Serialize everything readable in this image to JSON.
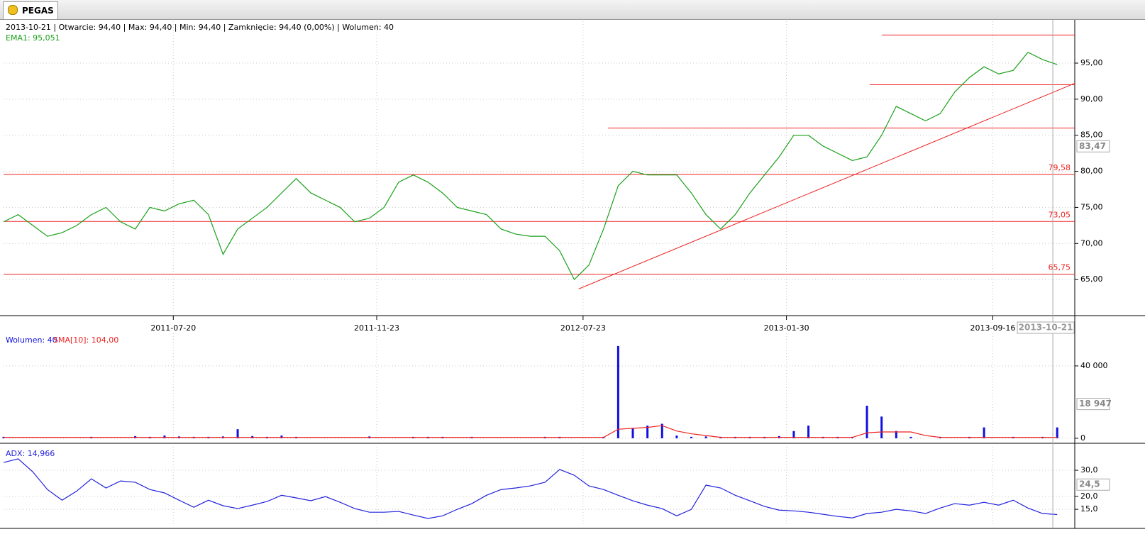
{
  "tab": "PEGAS",
  "chart_data": [
    {
      "type": "line",
      "header": "2013-10-21 | Otwarcie: 94,40 | Max: 94,40 | Min: 94,40 | Zamknięcie: 94,40 (0,00%)  | Wolumen: 40",
      "series": [
        {
          "name": "EMA1: 95,051",
          "color": "#1aa01a",
          "values": [
            73,
            74,
            72.5,
            71,
            71.5,
            72.5,
            74,
            75,
            73,
            72,
            75,
            74.5,
            75.5,
            76,
            74,
            68.5,
            72,
            73.5,
            75,
            77,
            79,
            77,
            76,
            75,
            73,
            73.5,
            75,
            78.5,
            79.5,
            78.5,
            77,
            75,
            74.5,
            74,
            72,
            71.3,
            71,
            71,
            69,
            65,
            67,
            72,
            78,
            80,
            79.5,
            79.5,
            79.5,
            77,
            74,
            72,
            74,
            77,
            79.5,
            82,
            85,
            85,
            83.5,
            82.5,
            81.5,
            82,
            85,
            89,
            88,
            87,
            88,
            91,
            93,
            94.5,
            93.5,
            94,
            96.5,
            95.5,
            94.8
          ]
        }
      ],
      "xlim": [
        0,
        73.2
      ],
      "xticks": [
        {
          "value": 11.6,
          "label": "2011-07-20"
        },
        {
          "value": 25.5,
          "label": "2011-11-23"
        },
        {
          "value": 39.6,
          "label": "2012-07-23"
        },
        {
          "value": 53.5,
          "label": "2013-01-30"
        },
        {
          "value": 67.6,
          "label": "2013-09-16"
        }
      ],
      "ylim": [
        60,
        100.8
      ],
      "yticks": [
        {
          "value": 65,
          "label": "65,00"
        },
        {
          "value": 70,
          "label": "70,00"
        },
        {
          "value": 75,
          "label": "75,00"
        },
        {
          "value": 80,
          "label": "80,00"
        },
        {
          "value": 85,
          "label": "85,00"
        },
        {
          "value": 90,
          "label": "90,00"
        },
        {
          "value": 95,
          "label": "95,00"
        }
      ],
      "levels": [
        98.9,
        92,
        86,
        {
          "value": 79.58,
          "label": "79,58"
        },
        {
          "value": 73.05,
          "label": "73,05"
        },
        {
          "value": 65.75,
          "label": "65,75"
        }
      ],
      "level_color": "#ee2222",
      "trendline": {
        "x": [
          39.3,
          73.2
        ],
        "y": [
          63.7,
          92.2
        ]
      },
      "cursor": {
        "x": 71.7,
        "x_label": "2013-10-21",
        "value": 83.47,
        "label": "83,47"
      },
      "grid": true
    },
    {
      "type": "bar",
      "series": [
        {
          "name": "Wolumen: 40",
          "color": "#1010e0",
          "values": [
            800,
            0,
            0,
            0,
            0,
            0,
            800,
            0,
            0,
            1200,
            800,
            1500,
            1000,
            800,
            800,
            1000,
            5000,
            1200,
            800,
            1500,
            800,
            0,
            0,
            0,
            0,
            1000,
            0,
            0,
            800,
            800,
            800,
            0,
            800,
            0,
            0,
            0,
            0,
            800,
            800,
            0,
            0,
            800,
            51000,
            5500,
            7000,
            8000,
            1500,
            800,
            1000,
            800,
            800,
            800,
            800,
            1200,
            4000,
            7000,
            800,
            800,
            800,
            18000,
            12000,
            4000,
            800,
            0,
            800,
            0,
            800,
            6000,
            0,
            800,
            0,
            800,
            6000
          ]
        },
        {
          "name": "SMA[10]: 104,00",
          "color": "#ee2222",
          "values": [
            500,
            500,
            500,
            500,
            500,
            500,
            500,
            500,
            500,
            500,
            500,
            500,
            500,
            500,
            500,
            500,
            500,
            500,
            500,
            500,
            500,
            500,
            500,
            500,
            500,
            500,
            500,
            500,
            500,
            500,
            500,
            500,
            500,
            500,
            500,
            500,
            500,
            500,
            500,
            500,
            500,
            500,
            5000,
            5500,
            6000,
            7000,
            4000,
            2500,
            1500,
            500,
            500,
            500,
            500,
            500,
            500,
            500,
            500,
            500,
            500,
            3000,
            3500,
            3500,
            3500,
            1500,
            500,
            500,
            500,
            500,
            500,
            500,
            500,
            500,
            500
          ]
        }
      ],
      "ylim": [
        -1600,
        58000
      ],
      "yticks": [
        0,
        {
          "value": 40000,
          "label": "40 000"
        }
      ],
      "cursor": {
        "value": 18947,
        "label": "18 947"
      }
    },
    {
      "type": "line",
      "series": [
        {
          "name": "ADX: 14,966",
          "color": "#2222dd",
          "values": [
            33,
            34.4,
            29.4,
            22.6,
            18.5,
            22,
            26.7,
            23.2,
            25.9,
            25.4,
            22.6,
            21.3,
            18.5,
            15.8,
            18.5,
            16.4,
            15.3,
            16.6,
            18,
            20.4,
            19.4,
            18.3,
            19.9,
            17.7,
            15.3,
            13.9,
            13.9,
            14.2,
            12.8,
            11.5,
            12.5,
            15,
            17.2,
            20.4,
            22.6,
            23.2,
            24,
            25.4,
            30.3,
            28.1,
            24,
            22.6,
            20.4,
            18.3,
            16.6,
            15.3,
            12.5,
            15,
            24.3,
            23.2,
            20.4,
            18.3,
            16.1,
            14.7,
            14.4,
            13.9,
            13.1,
            12.3,
            11.7,
            13.4,
            13.9,
            15,
            14.4,
            13.4,
            15.5,
            17.2,
            16.6,
            17.7,
            16.6,
            18.5,
            15.5,
            13.4,
            13
          ]
        }
      ],
      "ylim": [
        8.5,
        39
      ],
      "yticks": [
        {
          "value": 15,
          "label": "15,0"
        },
        {
          "value": 20,
          "label": "20,0"
        },
        {
          "value": 30,
          "label": "30,0"
        }
      ],
      "cursor": {
        "value": 24.5,
        "label": "24,5"
      }
    }
  ]
}
